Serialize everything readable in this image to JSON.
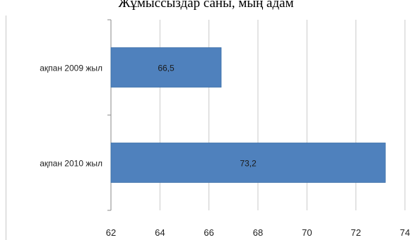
{
  "chart_data": {
    "type": "bar",
    "orientation": "horizontal",
    "title": "Жұмыссыздар саны, мың адам",
    "categories": [
      "ақпан 2009 жыл",
      "ақпан 2010 жыл"
    ],
    "values": [
      66.5,
      73.2
    ],
    "data_labels": [
      "66,5",
      "73,2"
    ],
    "xlim": [
      62,
      74
    ],
    "xticks": [
      62,
      64,
      66,
      68,
      70,
      72,
      74
    ],
    "xtick_labels": [
      "62",
      "64",
      "66",
      "68",
      "70",
      "72",
      "74"
    ],
    "grid": "vertical",
    "legend": "none",
    "bar_color": "#4F81BD",
    "grid_color": "#c9c9c9",
    "axis_color": "#888888"
  }
}
